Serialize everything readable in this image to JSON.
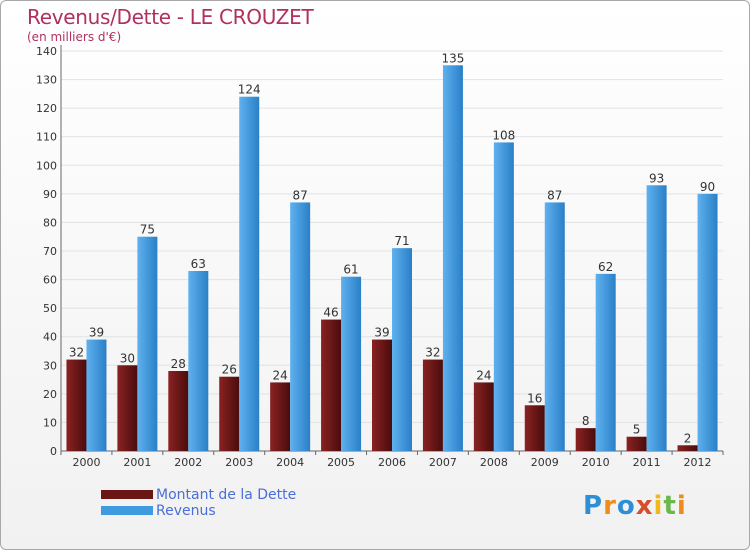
{
  "header": {
    "title": "Revenus/Dette - LE CROUZET",
    "subtitle": "(en milliers d'€)"
  },
  "legend": {
    "items": [
      {
        "label": "Montant de la Dette",
        "color": "#6b1515"
      },
      {
        "label": "Revenus",
        "color": "#3f9ae0"
      }
    ]
  },
  "logo": {
    "text": "Proxiti",
    "colors": [
      "#2f8fd6",
      "#f08c1a",
      "#2f8fd6",
      "#d64e2a",
      "#f0b81a",
      "#6ab84a",
      "#f08c1a"
    ]
  },
  "chart_data": {
    "type": "bar",
    "title": "Revenus/Dette - LE CROUZET",
    "subtitle": "(en milliers d'€)",
    "categories": [
      "2000",
      "2001",
      "2002",
      "2003",
      "2004",
      "2005",
      "2006",
      "2007",
      "2008",
      "2009",
      "2010",
      "2011",
      "2012"
    ],
    "series": [
      {
        "name": "Montant de la Dette",
        "color": "#6b1515",
        "values": [
          32,
          30,
          28,
          26,
          24,
          46,
          39,
          32,
          24,
          16,
          8,
          5,
          2
        ]
      },
      {
        "name": "Revenus",
        "color": "#3f9ae0",
        "values": [
          39,
          75,
          63,
          124,
          87,
          61,
          71,
          135,
          108,
          87,
          62,
          93,
          90
        ]
      }
    ],
    "ylim": [
      0,
      140
    ],
    "yticks": [
      0,
      10,
      20,
      30,
      40,
      50,
      60,
      70,
      80,
      90,
      100,
      110,
      120,
      130,
      140
    ],
    "grid": true,
    "legend_position": "bottom-left"
  }
}
